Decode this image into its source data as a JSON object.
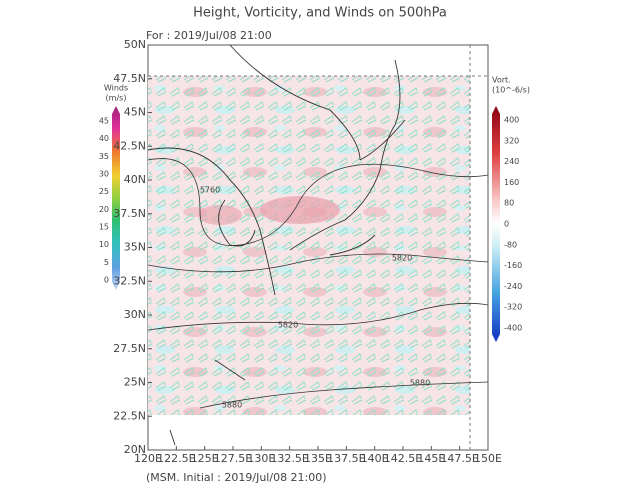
{
  "title": "Height, Vorticity, and Winds on 500hPa",
  "subtitle": "For : 2019/Jul/08 21:00",
  "footer": "(MSM. Initial : 2019/Jul/08 21:00)",
  "map": {
    "lat_labels": [
      "50N",
      "47.5N",
      "45N",
      "42.5N",
      "40N",
      "37.5N",
      "35N",
      "32.5N",
      "30N",
      "27.5N",
      "25N",
      "22.5N",
      "20N"
    ],
    "lon_labels": [
      "120E",
      "122.5E",
      "125E",
      "127.5E",
      "130E",
      "132.5E",
      "135E",
      "137.5E",
      "140E",
      "142.5E",
      "145E",
      "147.5E",
      "150E"
    ],
    "contour_labels": [
      "5760",
      "5820",
      "5820",
      "5880",
      "5880"
    ]
  },
  "winds_bar": {
    "title": [
      "Winds",
      "(m/s)"
    ],
    "labels": [
      "45",
      "40",
      "35",
      "30",
      "25",
      "20",
      "15",
      "10",
      "5",
      "0"
    ]
  },
  "vort_bar": {
    "title": [
      "Vort.",
      "(10^-6/s)"
    ],
    "labels": [
      "400",
      "320",
      "240",
      "160",
      "80",
      "0",
      "-80",
      "-160",
      "-240",
      "-320",
      "-400"
    ]
  }
}
